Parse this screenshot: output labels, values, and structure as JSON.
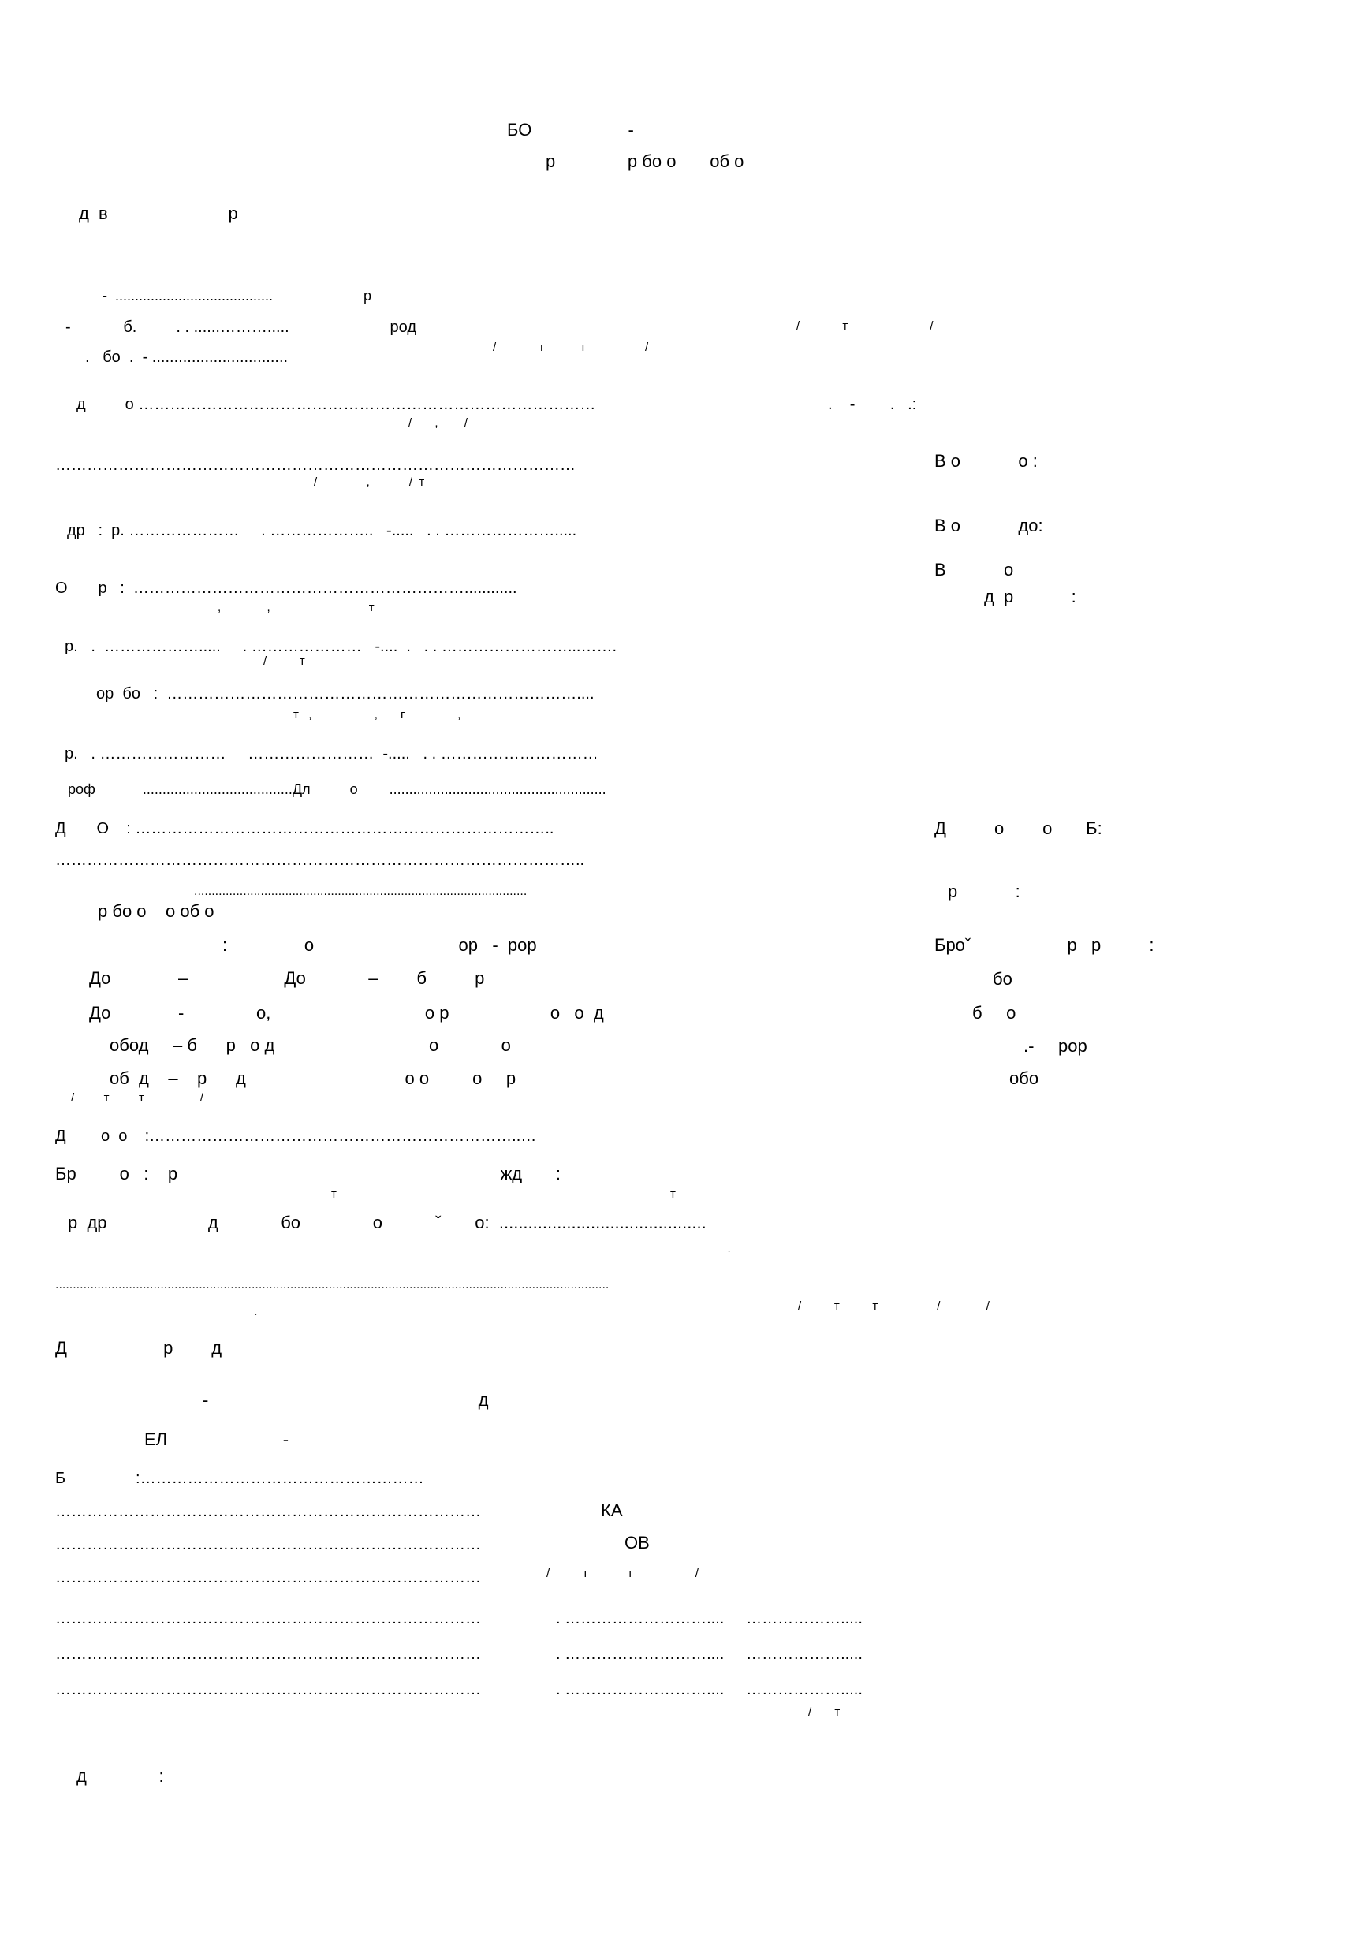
{
  "header": {
    "title": "БО                    -",
    "subtitle": "р               р бо о       об о"
  },
  "section_label": "д  в                         р",
  "lines": [
    "-  ........................................                       р",
    "-            б.         . . ......……….....                       род",
    ".   бо  .  - ...............................",
    "д         о ……………………………………………………………………………",
    "………………………………………………………………………………………",
    "др   :  р. …………………     . ………………..   -.....   . . ………………….....",
    "О       р   :  ………………………………………………………............",
    "р.   .  ……………….....     . …………………   -....  .   . . ……………………...…….",
    "ор  бо   :  ……………………………………………………………………....",
    "р.   . ……………………     ……………………  -.....   . . …………………………",
    "роф            ......................................Дл          о        .......................................................",
    "Д       О    : ……………………………………………………………………..",
    "………………………………………………………………………………………..",
    "...............................................................................................",
    "р бо о    о об о",
    ":                о                              ор   -  рор",
    "До              –                    До             –        б          р",
    "До              -               о,                                о р                     о   о  д",
    "обод     – б      р   о д                                о             о",
    "об  д    –    р      д                                 о о         о     р",
    "Д        о  о    :……………………………………………………………..…",
    "Бр         о   :    р                                                                   жд       :",
    "р  др                     д             бо               о           ˇ       о:  ...........................................",
    "..............................................................................................................................................................",
    "Д                    р        д"
  ],
  "sublines": [
    "/             т                         /",
    "/             т           т                  /",
    "/       ,        /",
    "/               ,            /  т",
    ",              ,                              т",
    "/          т",
    "т   ,                   ,       г                ,",
    "/         т         т                 /",
    "т",
    "т",
    "ˎ",
    "ˏ",
    "/          т          т                  /              /"
  ],
  "right_column": [
    ".    -        .   .:",
    "В о            о :",
    "В о            до:",
    "В            о",
    "д  р            :",
    "Д          о        о       Б:",
    "р            :",
    "Броˇ                    р   р          :",
    "бо",
    "б     о",
    ".-     рор",
    "обо"
  ],
  "signature": {
    "top_dash": "-                                                        д",
    "el_label": "ЕЛ                        -",
    "b_line": "Б                :………………………………………………",
    "dotted_lines": [
      "………………………………………………………………………",
      "………………………………………………………………………",
      "………………………………………………………………………",
      "………………………………………………………………………",
      "………………………………………………………………………",
      "………………………………………………………………………"
    ],
    "ka": "КА",
    "ov": "ОВ",
    "slash_line": "/          т            т                   /",
    "date_lines": [
      ". ………………………....     ……………….....",
      ". ………………………....     ……………….....",
      ". ………………………....     ……………….....",
      "/       т"
    ]
  },
  "footer": {
    "label": "д               :"
  }
}
